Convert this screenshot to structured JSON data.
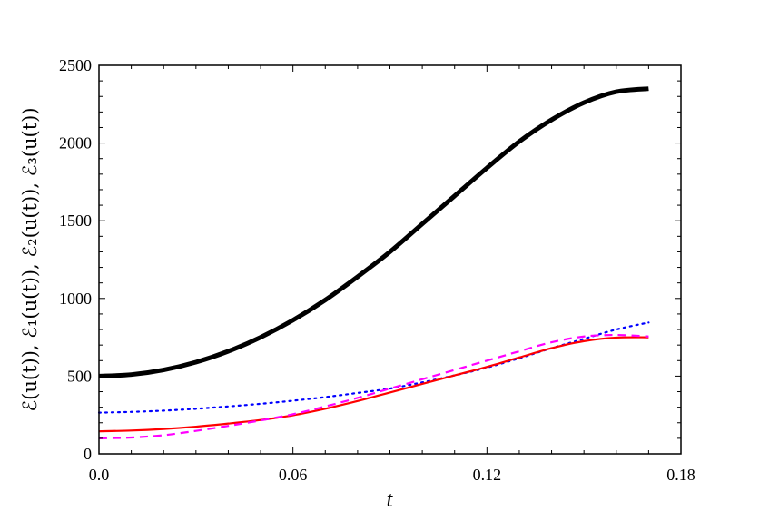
{
  "chart_data": {
    "type": "line",
    "title": "",
    "xlabel": "t",
    "ylabel": "ℰ(u(t)), ℰ₁(u(t)), ℰ₂(u(t)), ℰ₃(u(t))",
    "xlim": [
      0.0,
      0.18
    ],
    "ylim": [
      0,
      2500
    ],
    "xticks": [
      0.0,
      0.06,
      0.12,
      0.18
    ],
    "xtick_labels": [
      "0.0",
      "0.06",
      "0.12",
      "0.18"
    ],
    "yticks": [
      0,
      500,
      1000,
      1500,
      2000,
      2500
    ],
    "ytick_labels": [
      "0",
      "500",
      "1000",
      "1500",
      "2000",
      "2500"
    ],
    "grid": false,
    "legend": "none",
    "series": [
      {
        "color": "#000000",
        "style": "solid",
        "weight": "thick",
        "x": [
          0.0,
          0.01,
          0.02,
          0.03,
          0.04,
          0.05,
          0.06,
          0.07,
          0.08,
          0.09,
          0.1,
          0.11,
          0.12,
          0.13,
          0.14,
          0.15,
          0.16,
          0.17
        ],
        "y": [
          500,
          510,
          540,
          590,
          660,
          750,
          860,
          990,
          1140,
          1300,
          1480,
          1660,
          1840,
          2010,
          2150,
          2260,
          2330,
          2350
        ]
      },
      {
        "color": "#0000ff",
        "style": "dotted",
        "weight": "normal",
        "x": [
          0.0,
          0.01,
          0.02,
          0.03,
          0.04,
          0.05,
          0.06,
          0.07,
          0.08,
          0.09,
          0.1,
          0.11,
          0.12,
          0.13,
          0.14,
          0.15,
          0.16,
          0.17
        ],
        "y": [
          265,
          270,
          278,
          290,
          305,
          322,
          342,
          365,
          392,
          420,
          460,
          505,
          555,
          615,
          680,
          740,
          800,
          845
        ]
      },
      {
        "color": "#ff0000",
        "style": "solid",
        "weight": "normal",
        "x": [
          0.0,
          0.01,
          0.02,
          0.03,
          0.04,
          0.05,
          0.06,
          0.07,
          0.08,
          0.09,
          0.1,
          0.11,
          0.12,
          0.13,
          0.14,
          0.15,
          0.16,
          0.17
        ],
        "y": [
          145,
          150,
          160,
          175,
          195,
          218,
          248,
          290,
          340,
          395,
          450,
          505,
          560,
          620,
          680,
          725,
          748,
          750
        ]
      },
      {
        "color": "#ff00ff",
        "style": "dashed",
        "weight": "normal",
        "x": [
          0.0,
          0.01,
          0.02,
          0.03,
          0.04,
          0.05,
          0.06,
          0.07,
          0.08,
          0.09,
          0.1,
          0.11,
          0.12,
          0.13,
          0.14,
          0.15,
          0.16,
          0.17
        ],
        "y": [
          100,
          105,
          120,
          148,
          180,
          215,
          255,
          305,
          360,
          420,
          480,
          540,
          600,
          660,
          718,
          755,
          765,
          755
        ]
      }
    ]
  }
}
